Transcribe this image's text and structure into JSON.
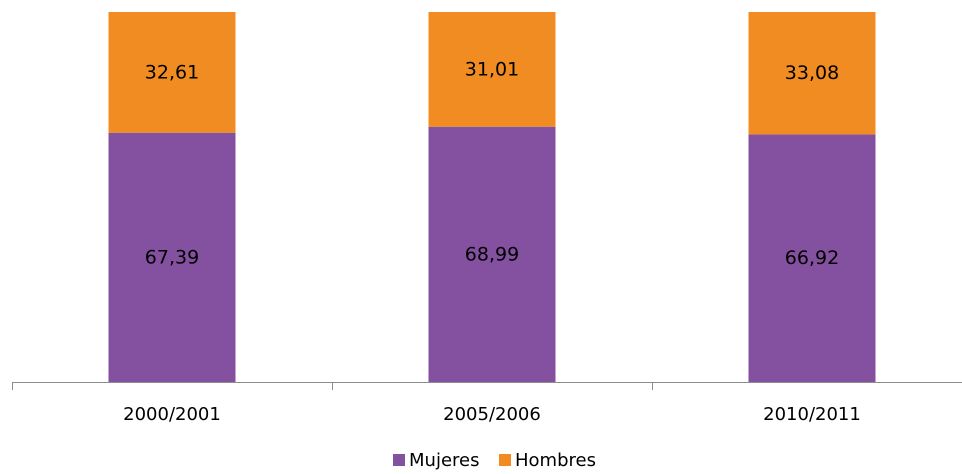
{
  "chart_data": {
    "type": "bar",
    "stacked": true,
    "categories": [
      "2000/2001",
      "2005/2006",
      "2010/2011"
    ],
    "series": [
      {
        "name": "Mujeres",
        "values": [
          67.39,
          68.99,
          66.92
        ],
        "labels": [
          "67,39",
          "68,99",
          "66,92"
        ],
        "color": "#8450A0"
      },
      {
        "name": "Hombres",
        "values": [
          32.61,
          31.01,
          33.08
        ],
        "labels": [
          "32,61",
          "31,01",
          "33,08"
        ],
        "color": "#F08C22"
      }
    ],
    "ylim": [
      0,
      100
    ],
    "grid": false,
    "legend": "bottom"
  }
}
